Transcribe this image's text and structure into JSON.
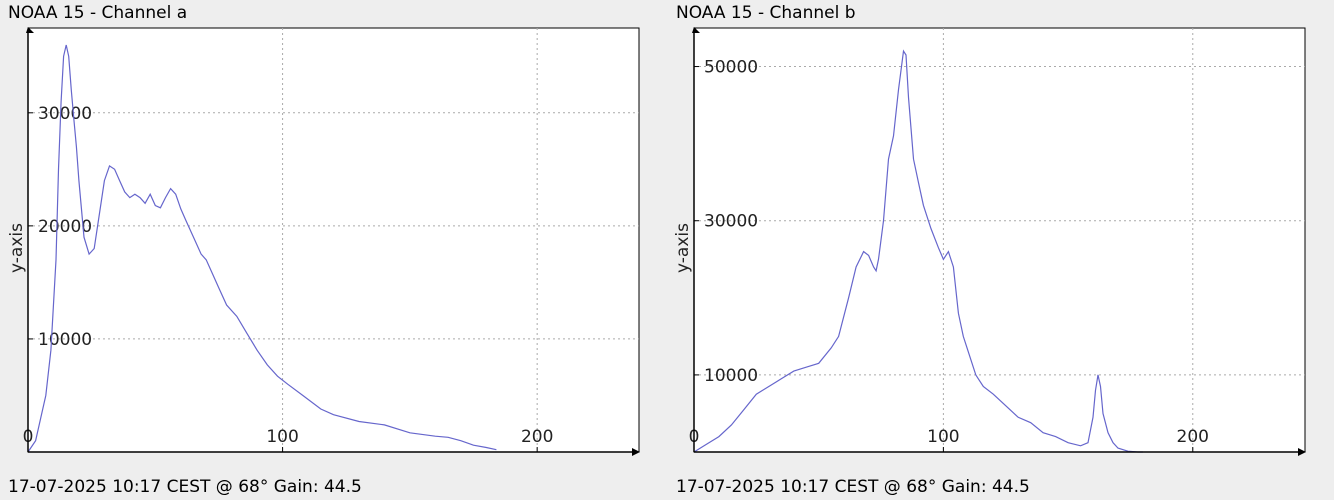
{
  "colors": {
    "background": "#eeeeee",
    "plot_background": "#ffffff",
    "grid": "#aaaaaa",
    "line": "#6666cc",
    "axis": "#000000"
  },
  "chart_data": [
    {
      "type": "line",
      "title": "NOAA 15 - Channel a",
      "footer": "17-07-2025 10:17 CEST @ 68° Gain: 44.5",
      "ylabel": "y-axis",
      "xlabel": "",
      "xlim": [
        0,
        240
      ],
      "ylim": [
        0,
        37500
      ],
      "xticks": [
        0,
        100,
        200
      ],
      "yticks": [
        10000,
        20000,
        30000
      ],
      "grid": true,
      "series": [
        {
          "x": [
            0,
            3,
            5,
            7,
            9,
            11,
            12,
            13,
            14,
            15,
            16,
            17,
            18,
            19,
            20,
            22,
            24,
            26,
            28,
            30,
            32,
            34,
            36,
            38,
            40,
            42,
            44,
            46,
            48,
            50,
            52,
            54,
            56,
            58,
            60,
            62,
            64,
            66,
            68,
            70,
            72,
            75,
            78,
            82,
            86,
            90,
            94,
            98,
            102,
            108,
            115,
            120,
            130,
            140,
            150,
            160,
            165,
            170,
            175,
            180,
            184
          ],
          "y": [
            0,
            1000,
            3000,
            5000,
            9000,
            17000,
            25000,
            31000,
            35000,
            36000,
            35000,
            32000,
            29500,
            27000,
            24000,
            19000,
            17500,
            18000,
            21000,
            24000,
            25300,
            25000,
            24000,
            23000,
            22500,
            22800,
            22500,
            22000,
            22800,
            21800,
            21600,
            22500,
            23300,
            22800,
            21500,
            20500,
            19500,
            18500,
            17500,
            17000,
            16000,
            14500,
            13000,
            12000,
            10500,
            9000,
            7700,
            6700,
            6000,
            5000,
            3800,
            3300,
            2700,
            2400,
            1700,
            1400,
            1300,
            1000,
            600,
            400,
            200
          ]
        }
      ]
    },
    {
      "type": "line",
      "title": "NOAA 15 - Channel b",
      "footer": "17-07-2025 10:17 CEST @ 68° Gain: 44.5",
      "ylabel": "y-axis",
      "xlabel": "",
      "xlim": [
        0,
        245
      ],
      "ylim": [
        0,
        55000
      ],
      "xticks": [
        0,
        100,
        200
      ],
      "yticks": [
        10000,
        30000,
        50000
      ],
      "grid": true,
      "series": [
        {
          "x": [
            0,
            5,
            10,
            15,
            20,
            25,
            30,
            35,
            40,
            45,
            50,
            55,
            58,
            62,
            65,
            68,
            70,
            72,
            73,
            74,
            76,
            78,
            80,
            82,
            84,
            85,
            86,
            87,
            88,
            90,
            92,
            95,
            98,
            100,
            102,
            104,
            106,
            108,
            110,
            113,
            116,
            120,
            125,
            130,
            135,
            140,
            145,
            150,
            155,
            158,
            160,
            161,
            162,
            163,
            164,
            166,
            168,
            170,
            174,
            178,
            180
          ],
          "y": [
            0,
            1000,
            2000,
            3500,
            5500,
            7500,
            8500,
            9500,
            10500,
            11000,
            11500,
            13500,
            15000,
            20000,
            24000,
            26000,
            25500,
            24000,
            23500,
            25000,
            30000,
            38000,
            41000,
            47000,
            52000,
            51500,
            46000,
            42000,
            38000,
            35000,
            32000,
            29000,
            26500,
            25000,
            26000,
            24000,
            18000,
            15000,
            13000,
            10000,
            8500,
            7500,
            6000,
            4500,
            3800,
            2500,
            2000,
            1200,
            800,
            1200,
            4500,
            8000,
            10000,
            8500,
            5000,
            2500,
            1200,
            500,
            100,
            0,
            0
          ]
        }
      ]
    }
  ]
}
